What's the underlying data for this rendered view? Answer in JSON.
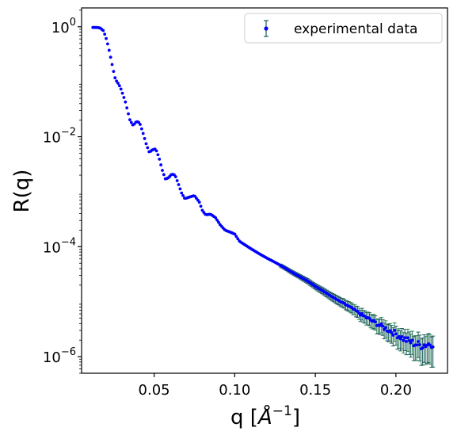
{
  "chart_data": {
    "type": "scatter",
    "title": "",
    "xlabel_main": "q [",
    "xlabel_unit": "Å",
    "xlabel_sup": "−1",
    "xlabel_end": "]",
    "ylabel": "R(q)",
    "yscale": "log",
    "xlim": [
      0.005,
      0.232
    ],
    "ylim": [
      5e-07,
      2.2
    ],
    "xticks": [
      0.05,
      0.1,
      0.15,
      0.2
    ],
    "xtick_labels": [
      "0.05",
      "0.10",
      "0.15",
      "0.20"
    ],
    "yticks": [
      1,
      0.01,
      0.0001,
      1e-06
    ],
    "ytick_labels": [
      {
        "base": "10",
        "exp": "0"
      },
      {
        "base": "10",
        "exp": "−2"
      },
      {
        "base": "10",
        "exp": "−4"
      },
      {
        "base": "10",
        "exp": "−6"
      }
    ],
    "legend": {
      "position": "top-right",
      "entries": [
        "experimental data"
      ]
    },
    "colors": {
      "marker": "#0000ff",
      "errorbar": "#1f5c5c",
      "errorbar_tail": "#2e8b57"
    },
    "grid": false,
    "series": [
      {
        "name": "experimental data",
        "key_points": [
          [
            0.012,
            0.97
          ],
          [
            0.0145,
            0.97
          ],
          [
            0.0165,
            0.95
          ],
          [
            0.0185,
            0.85
          ],
          [
            0.02,
            0.65
          ],
          [
            0.0215,
            0.45
          ],
          [
            0.023,
            0.28
          ],
          [
            0.0245,
            0.17
          ],
          [
            0.026,
            0.11
          ],
          [
            0.0275,
            0.095
          ],
          [
            0.029,
            0.08
          ],
          [
            0.0305,
            0.06
          ],
          [
            0.032,
            0.045
          ],
          [
            0.0335,
            0.03
          ],
          [
            0.035,
            0.02
          ],
          [
            0.037,
            0.016
          ],
          [
            0.039,
            0.019
          ],
          [
            0.041,
            0.018
          ],
          [
            0.043,
            0.012
          ],
          [
            0.045,
            0.0075
          ],
          [
            0.047,
            0.0052
          ],
          [
            0.049,
            0.0058
          ],
          [
            0.051,
            0.006
          ],
          [
            0.053,
            0.0042
          ],
          [
            0.055,
            0.0025
          ],
          [
            0.057,
            0.0017
          ],
          [
            0.059,
            0.0018
          ],
          [
            0.061,
            0.0021
          ],
          [
            0.063,
            0.002
          ],
          [
            0.065,
            0.0014
          ],
          [
            0.067,
            0.00095
          ],
          [
            0.069,
            0.00075
          ],
          [
            0.072,
            0.0008
          ],
          [
            0.075,
            0.00085
          ],
          [
            0.078,
            0.00065
          ],
          [
            0.08,
            0.00045
          ],
          [
            0.082,
            0.00038
          ],
          [
            0.085,
            0.00039
          ],
          [
            0.088,
            0.00034
          ],
          [
            0.091,
            0.00025
          ],
          [
            0.094,
            0.0002
          ],
          [
            0.097,
            0.000185
          ],
          [
            0.1,
            0.00017
          ],
          [
            0.103,
            0.000125
          ],
          [
            0.107,
            0.000105
          ],
          [
            0.11,
            9.2e-05
          ],
          [
            0.115,
            7.5e-05
          ],
          [
            0.12,
            6.2e-05
          ],
          [
            0.125,
            5.2e-05
          ],
          [
            0.13,
            4.3e-05
          ],
          [
            0.135,
            3.5e-05
          ],
          [
            0.14,
            2.9e-05
          ],
          [
            0.145,
            2.4e-05
          ],
          [
            0.15,
            1.9e-05
          ],
          [
            0.155,
            1.55e-05
          ],
          [
            0.16,
            1.25e-05
          ],
          [
            0.165,
            1.02e-05
          ],
          [
            0.17,
            8.5e-06
          ],
          [
            0.175,
            6.8e-06
          ],
          [
            0.18,
            5.5e-06
          ],
          [
            0.185,
            4.5e-06
          ],
          [
            0.19,
            3.7e-06
          ],
          [
            0.195,
            3.1e-06
          ],
          [
            0.2,
            2.6e-06
          ],
          [
            0.205,
            2.1e-06
          ],
          [
            0.21,
            1.8e-06
          ],
          [
            0.215,
            1.6e-06
          ],
          [
            0.22,
            1.7e-06
          ],
          [
            0.223,
            1.8e-06
          ]
        ]
      }
    ]
  }
}
